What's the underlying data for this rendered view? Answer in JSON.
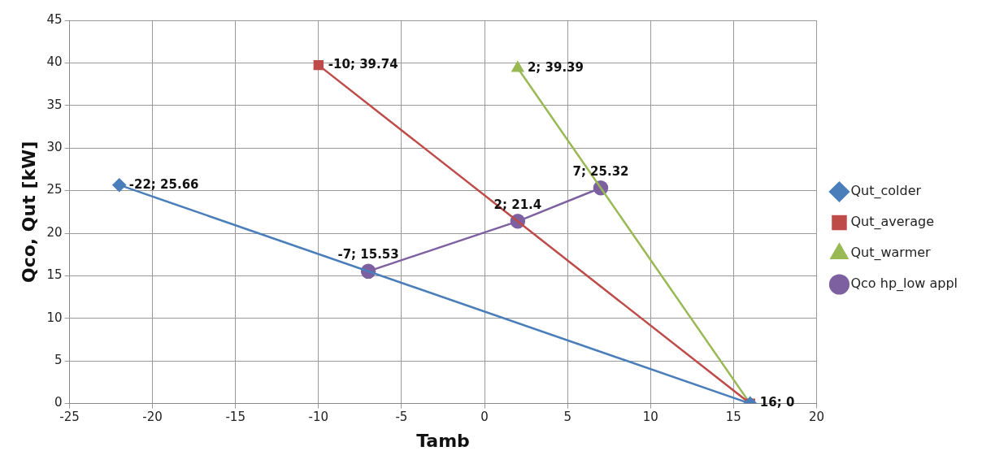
{
  "chart_data": {
    "type": "line",
    "xlabel": "Tamb",
    "ylabel": "Qco, Qut [kW]",
    "xlim": [
      -25,
      20
    ],
    "xticks": [
      -25,
      -20,
      -15,
      -10,
      -5,
      0,
      5,
      10,
      15,
      20
    ],
    "ylim": [
      0,
      45
    ],
    "yticks": [
      0,
      5,
      10,
      15,
      20,
      25,
      30,
      35,
      40,
      45
    ],
    "grid": true,
    "legend": "right",
    "line_style": "solid",
    "series": [
      {
        "name": "Qut_colder",
        "color": "#4a7ebb",
        "marker": "diamond",
        "x": [
          -22,
          16
        ],
        "values": [
          25.66,
          0
        ],
        "value_labels": [
          "-22; 25.66",
          null
        ]
      },
      {
        "name": "Qut_average",
        "color": "#be4b48",
        "marker": "square",
        "x": [
          -10,
          16
        ],
        "values": [
          39.74,
          0
        ],
        "value_labels": [
          "-10; 39.74",
          null
        ]
      },
      {
        "name": "Qut_warmer",
        "color": "#98b954",
        "marker": "triangle",
        "x": [
          2,
          16
        ],
        "values": [
          39.39,
          0
        ],
        "value_labels": [
          "2; 39.39",
          "16; 0"
        ]
      },
      {
        "name": "Qco hp_low appl",
        "color": "#7d60a0",
        "marker": "circle",
        "x": [
          -7,
          2,
          7
        ],
        "values": [
          15.53,
          21.4,
          25.32
        ],
        "value_labels": [
          "-7; 15.53",
          "2; 21.4",
          "7; 25.32"
        ]
      }
    ]
  }
}
